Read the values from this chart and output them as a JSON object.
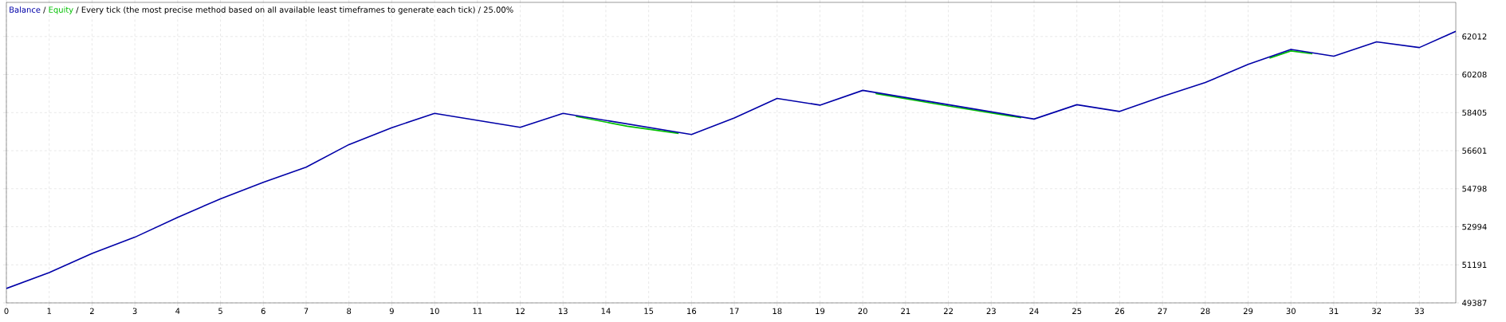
{
  "chart_data": {
    "type": "line",
    "title": "Every tick (the most precise method based on all available least timeframes to generate each tick) / 25.00%",
    "series": [
      {
        "name": "Equity",
        "color": "#00c000",
        "x": [
          13.3,
          14.5,
          15.7,
          18,
          20.3,
          22,
          23.7,
          27,
          29.5,
          30,
          30.5
        ],
        "values": [
          58230,
          57760,
          57420,
          null,
          59310,
          58720,
          58160,
          null,
          60990,
          61330,
          61190
        ]
      },
      {
        "name": "Balance",
        "color": "#0000a8",
        "x": [
          0,
          1,
          2,
          3,
          4,
          5,
          6,
          7,
          8,
          9,
          10,
          12,
          13,
          16,
          17,
          18,
          19,
          20,
          24,
          25,
          26,
          27,
          28,
          29,
          30,
          31,
          32,
          33,
          33.85
        ],
        "values": [
          50070,
          50820,
          51730,
          52500,
          53440,
          54320,
          55100,
          55820,
          56890,
          57690,
          58370,
          57710,
          58370,
          57370,
          58150,
          59080,
          58760,
          59460,
          58100,
          58780,
          58460,
          59170,
          59830,
          60690,
          61400,
          61080,
          61760,
          61490,
          62260
        ]
      }
    ],
    "xlim": [
      0,
      33.85
    ],
    "ylim": [
      49387,
      63630
    ],
    "xticks": [
      0,
      1,
      2,
      3,
      4,
      5,
      6,
      7,
      8,
      9,
      10,
      11,
      12,
      13,
      14,
      15,
      16,
      17,
      18,
      19,
      20,
      21,
      22,
      23,
      24,
      25,
      26,
      27,
      28,
      29,
      30,
      31,
      32,
      33
    ],
    "yticks": [
      49387,
      51191,
      52994,
      54798,
      56601,
      58405,
      60208,
      62012
    ],
    "annotations": [
      "/",
      "/"
    ],
    "grid": true,
    "legend": "top left",
    "marker": "none",
    "line_style": "solid"
  }
}
